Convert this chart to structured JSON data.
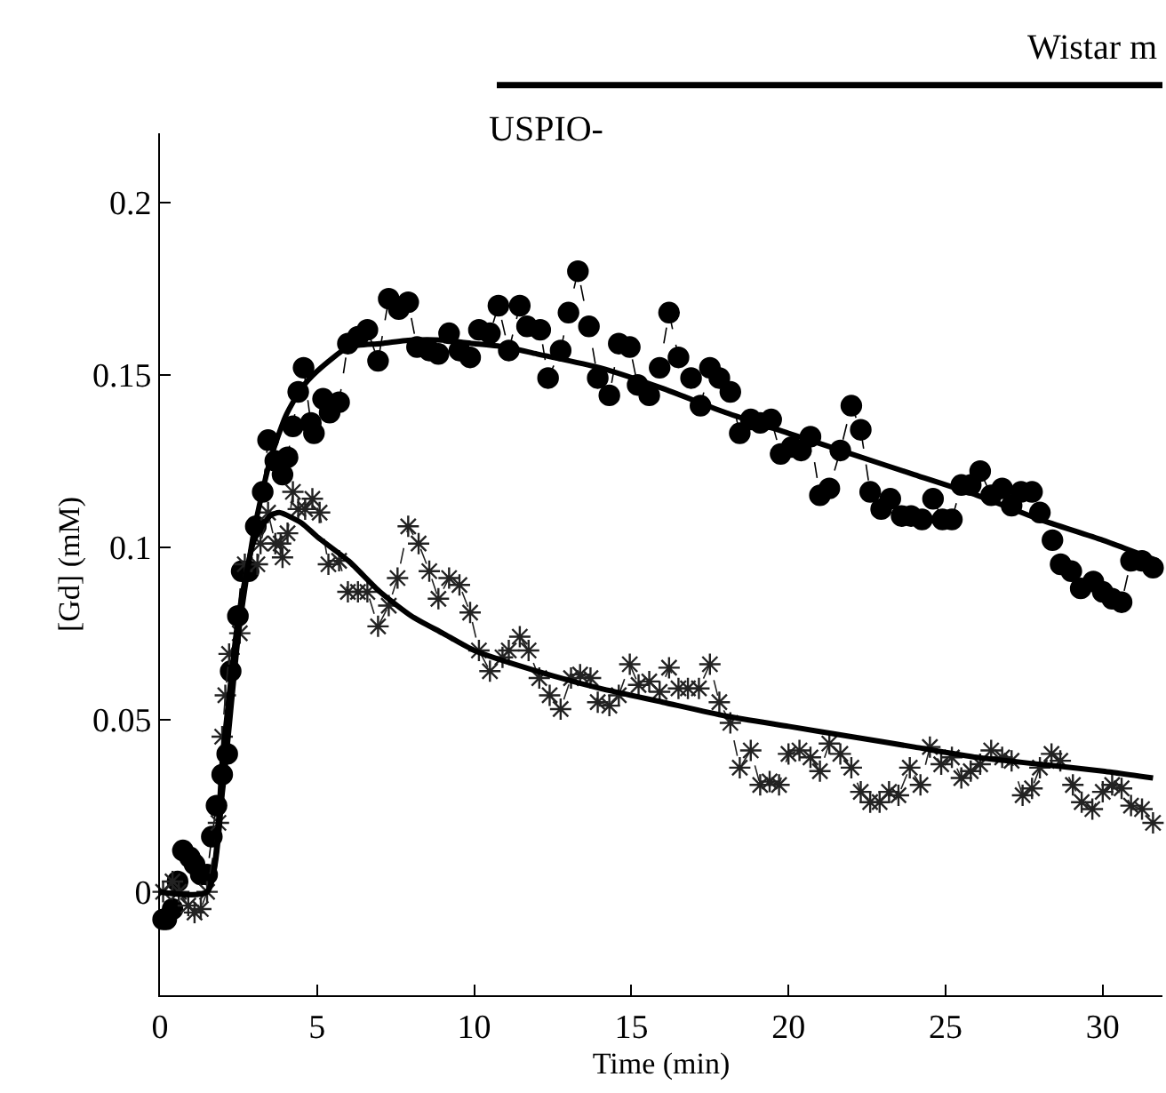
{
  "chart_data": {
    "type": "line",
    "xlabel": "Time (min)",
    "ylabel": "[Gd] (mM)",
    "annotations": [
      "Wistar m",
      "USPIO-"
    ],
    "xlim": [
      0,
      31.9
    ],
    "xticks": [
      0,
      5,
      10,
      15,
      20,
      25,
      30
    ],
    "ylim": [
      -0.03,
      0.22
    ],
    "yticks": [
      0,
      0.05,
      0.1,
      0.15,
      0.2
    ],
    "series": [
      {
        "color": "#000000",
        "marker": "circle",
        "line_style": "dashed",
        "x": [
          0.1,
          0.2,
          0.4,
          0.56,
          0.73,
          0.95,
          1.1,
          1.3,
          1.5,
          1.65,
          1.8,
          1.98,
          2.14,
          2.25,
          2.48,
          2.6,
          2.82,
          3.05,
          3.27,
          3.44,
          3.67,
          3.9,
          4.06,
          4.23,
          4.4,
          4.57,
          4.8,
          4.9,
          5.19,
          5.4,
          5.7,
          5.98,
          6.3,
          6.6,
          6.94,
          7.28,
          7.6,
          7.9,
          8.18,
          8.57,
          8.86,
          9.2,
          9.53,
          9.87,
          10.15,
          10.5,
          10.77,
          11.1,
          11.45,
          11.68,
          12.1,
          12.35,
          12.75,
          13.0,
          13.3,
          13.65,
          13.93,
          14.3,
          14.6,
          14.95,
          15.2,
          15.57,
          15.9,
          16.2,
          16.5,
          16.9,
          17.2,
          17.5,
          17.8,
          18.15,
          18.45,
          18.8,
          19.1,
          19.45,
          19.75,
          20.1,
          20.4,
          20.7,
          21.0,
          21.3,
          21.65,
          22.0,
          22.3,
          22.6,
          22.95,
          23.24,
          23.6,
          23.9,
          24.25,
          24.6,
          24.9,
          25.2,
          25.5,
          25.8,
          26.1,
          26.45,
          26.8,
          27.1,
          27.4,
          27.75,
          28.0,
          28.4,
          28.66,
          29.0,
          29.3,
          29.7,
          30.0,
          30.3,
          30.6,
          30.9,
          31.25,
          31.6
        ],
        "values": [
          -0.008,
          -0.008,
          -0.005,
          0.003,
          0.012,
          0.01,
          0.008,
          0.005,
          0.005,
          0.016,
          0.025,
          0.034,
          0.04,
          0.064,
          0.08,
          0.093,
          0.093,
          0.106,
          0.116,
          0.131,
          0.125,
          0.121,
          0.126,
          0.135,
          0.145,
          0.152,
          0.136,
          0.133,
          0.143,
          0.139,
          0.142,
          0.159,
          0.161,
          0.163,
          0.154,
          0.172,
          0.169,
          0.171,
          0.158,
          0.157,
          0.156,
          0.162,
          0.157,
          0.155,
          0.163,
          0.162,
          0.17,
          0.157,
          0.17,
          0.164,
          0.163,
          0.149,
          0.157,
          0.168,
          0.18,
          0.164,
          0.149,
          0.144,
          0.159,
          0.158,
          0.147,
          0.144,
          0.152,
          0.168,
          0.155,
          0.149,
          0.141,
          0.152,
          0.149,
          0.145,
          0.133,
          0.137,
          0.136,
          0.137,
          0.127,
          0.129,
          0.128,
          0.132,
          0.115,
          0.117,
          0.128,
          0.141,
          0.134,
          0.116,
          0.111,
          0.114,
          0.109,
          0.109,
          0.108,
          0.114,
          0.108,
          0.108,
          0.118,
          0.118,
          0.122,
          0.115,
          0.117,
          0.112,
          0.116,
          0.116,
          0.11,
          0.102,
          0.095,
          0.093,
          0.088,
          0.09,
          0.087,
          0.085,
          0.084,
          0.096,
          0.096,
          0.094
        ]
      },
      {
        "color": "#222222",
        "marker": "cross",
        "line_style": "dashed",
        "x": [
          0.1,
          0.4,
          0.6,
          0.9,
          1.1,
          1.3,
          1.5,
          1.86,
          1.98,
          2.08,
          2.2,
          2.54,
          2.7,
          3.1,
          3.2,
          3.44,
          3.67,
          3.84,
          3.9,
          4.06,
          4.23,
          4.4,
          4.62,
          4.85,
          5.08,
          5.36,
          5.7,
          5.98,
          6.3,
          6.6,
          6.94,
          7.28,
          7.56,
          7.9,
          8.23,
          8.57,
          8.86,
          9.2,
          9.53,
          9.87,
          10.15,
          10.5,
          10.9,
          11.1,
          11.45,
          11.73,
          12.07,
          12.4,
          12.75,
          13.08,
          13.37,
          13.7,
          13.93,
          14.3,
          14.6,
          14.95,
          15.23,
          15.57,
          15.9,
          16.2,
          16.5,
          16.8,
          17.15,
          17.5,
          17.8,
          18.15,
          18.45,
          18.8,
          19.1,
          19.4,
          19.7,
          20.0,
          20.35,
          20.7,
          21.0,
          21.3,
          21.65,
          22.0,
          22.3,
          22.6,
          22.9,
          23.2,
          23.5,
          23.86,
          24.2,
          24.5,
          24.86,
          25.2,
          25.5,
          25.8,
          26.1,
          26.45,
          26.8,
          27.1,
          27.45,
          27.75,
          28.0,
          28.37,
          28.65,
          29.05,
          29.33,
          29.67,
          30.0,
          30.3,
          30.6,
          30.9,
          31.25,
          31.6
        ],
        "values": [
          0.0,
          0.003,
          0.0,
          -0.004,
          -0.006,
          -0.005,
          0.0,
          0.02,
          0.045,
          0.057,
          0.069,
          0.075,
          0.095,
          0.095,
          0.101,
          0.11,
          0.101,
          0.101,
          0.097,
          0.104,
          0.116,
          0.111,
          0.111,
          0.114,
          0.11,
          0.095,
          0.096,
          0.087,
          0.087,
          0.087,
          0.077,
          0.083,
          0.091,
          0.106,
          0.101,
          0.093,
          0.085,
          0.091,
          0.089,
          0.081,
          0.07,
          0.064,
          0.068,
          0.07,
          0.074,
          0.07,
          0.062,
          0.057,
          0.053,
          0.062,
          0.063,
          0.062,
          0.055,
          0.054,
          0.057,
          0.066,
          0.06,
          0.061,
          0.058,
          0.065,
          0.059,
          0.059,
          0.059,
          0.066,
          0.055,
          0.049,
          0.036,
          0.041,
          0.031,
          0.032,
          0.031,
          0.04,
          0.041,
          0.039,
          0.035,
          0.043,
          0.04,
          0.036,
          0.029,
          0.026,
          0.026,
          0.029,
          0.028,
          0.036,
          0.031,
          0.042,
          0.037,
          0.039,
          0.033,
          0.035,
          0.037,
          0.041,
          0.039,
          0.038,
          0.028,
          0.03,
          0.036,
          0.04,
          0.038,
          0.031,
          0.026,
          0.024,
          0.029,
          0.031,
          0.03,
          0.025,
          0.024,
          0.02
        ]
      },
      {
        "color": "#000000",
        "marker": "none",
        "line_style": "solid",
        "x": [
          0,
          1.5,
          2,
          2.5,
          3,
          3.5,
          4,
          4.5,
          5,
          6,
          7,
          8,
          9,
          10,
          11,
          12,
          14,
          16,
          18,
          20,
          22,
          24,
          26,
          28,
          30,
          31.75
        ],
        "values": [
          0,
          0,
          0.03,
          0.075,
          0.105,
          0.125,
          0.138,
          0.146,
          0.151,
          0.158,
          0.159,
          0.16,
          0.16,
          0.159,
          0.158,
          0.156,
          0.152,
          0.146,
          0.139,
          0.133,
          0.127,
          0.121,
          0.115,
          0.108,
          0.102,
          0.096
        ]
      },
      {
        "color": "#000000",
        "marker": "none",
        "line_style": "solid",
        "x": [
          0,
          1.5,
          2,
          2.5,
          3,
          3.5,
          3.8,
          4.5,
          5,
          6,
          7,
          8,
          9,
          10,
          12,
          14,
          16,
          18,
          20,
          22,
          24,
          26,
          28,
          30,
          31.6
        ],
        "values": [
          0,
          0,
          0.04,
          0.08,
          0.102,
          0.109,
          0.11,
          0.107,
          0.103,
          0.096,
          0.087,
          0.08,
          0.075,
          0.07,
          0.064,
          0.059,
          0.055,
          0.051,
          0.048,
          0.045,
          0.042,
          0.039,
          0.037,
          0.035,
          0.033
        ]
      }
    ]
  }
}
